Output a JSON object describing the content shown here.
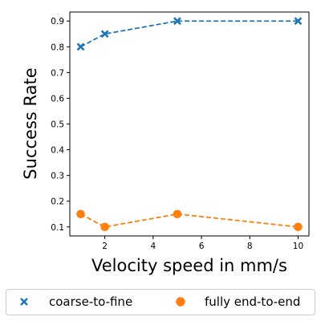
{
  "chart_data": {
    "type": "line",
    "xlabel": "Velocity speed in mm/s",
    "ylabel": "Success Rate",
    "xlim": [
      0.55,
      10.45
    ],
    "ylim": [
      0.065,
      0.935
    ],
    "xticks": [
      2,
      4,
      6,
      8,
      10
    ],
    "yticks": [
      0.1,
      0.2,
      0.3,
      0.4,
      0.5,
      0.6,
      0.7,
      0.8,
      0.9
    ],
    "grid": false,
    "legend_position": "bottom",
    "series": [
      {
        "name": "coarse-to-fine",
        "color": "#1f77b4",
        "marker": "x",
        "linestyle": "dashed",
        "x": [
          1,
          2,
          5,
          10
        ],
        "y": [
          0.8,
          0.85,
          0.9,
          0.9
        ]
      },
      {
        "name": "fully end-to-end",
        "color": "#ff7f0e",
        "marker": "circle",
        "linestyle": "dashed",
        "x": [
          1,
          2,
          5,
          10
        ],
        "y": [
          0.15,
          0.1,
          0.15,
          0.1
        ]
      }
    ]
  }
}
